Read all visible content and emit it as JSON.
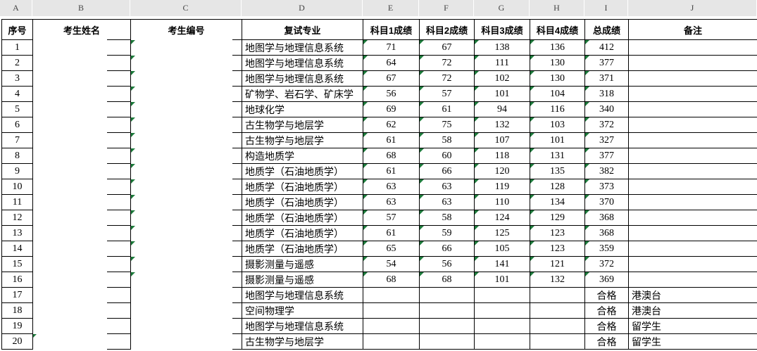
{
  "colors": {
    "grid_line": "#000000",
    "strip_background": "#e6e6e6",
    "strip_text": "#444444",
    "error_indicator_green": "#1e7b3c",
    "cell_background": "#ffffff",
    "cell_text": "#000000"
  },
  "column_strip": {
    "letters": [
      "A",
      "B",
      "C",
      "D",
      "E",
      "F",
      "G",
      "H",
      "I",
      "J"
    ]
  },
  "header": {
    "labels": [
      "序号",
      "考生姓名",
      "考生编号",
      "复试专业",
      "科目1成绩",
      "科目2成绩",
      "科目3成绩",
      "科目4成绩",
      "总成绩",
      "备注"
    ]
  },
  "rows": [
    {
      "no": "1",
      "name": "",
      "candidate_no": "",
      "major": "地图学与地理信息系统",
      "s1": "71",
      "s2": "67",
      "s3": "138",
      "s4": "136",
      "total": "412",
      "remark": "",
      "flagged": true
    },
    {
      "no": "2",
      "name": "",
      "candidate_no": "",
      "major": "地图学与地理信息系统",
      "s1": "64",
      "s2": "72",
      "s3": "111",
      "s4": "130",
      "total": "377",
      "remark": "",
      "flagged": true
    },
    {
      "no": "3",
      "name": "",
      "candidate_no": "",
      "major": "地图学与地理信息系统",
      "s1": "67",
      "s2": "72",
      "s3": "102",
      "s4": "130",
      "total": "371",
      "remark": "",
      "flagged": true
    },
    {
      "no": "4",
      "name": "",
      "candidate_no": "",
      "major": "矿物学、岩石学、矿床学",
      "s1": "56",
      "s2": "57",
      "s3": "101",
      "s4": "104",
      "total": "318",
      "remark": "",
      "flagged": true
    },
    {
      "no": "5",
      "name": "",
      "candidate_no": "",
      "major": "地球化学",
      "s1": "69",
      "s2": "61",
      "s3": "94",
      "s4": "116",
      "total": "340",
      "remark": "",
      "flagged": true
    },
    {
      "no": "6",
      "name": "",
      "candidate_no": "",
      "major": "古生物学与地层学",
      "s1": "62",
      "s2": "75",
      "s3": "132",
      "s4": "103",
      "total": "372",
      "remark": "",
      "flagged": true
    },
    {
      "no": "7",
      "name": "",
      "candidate_no": "",
      "major": "古生物学与地层学",
      "s1": "61",
      "s2": "58",
      "s3": "107",
      "s4": "101",
      "total": "327",
      "remark": "",
      "flagged": true
    },
    {
      "no": "8",
      "name": "",
      "candidate_no": "",
      "major": "构造地质学",
      "s1": "68",
      "s2": "60",
      "s3": "118",
      "s4": "131",
      "total": "377",
      "remark": "",
      "flagged": true
    },
    {
      "no": "9",
      "name": "",
      "candidate_no": "",
      "major": "地质学（石油地质学）",
      "s1": "61",
      "s2": "66",
      "s3": "120",
      "s4": "135",
      "total": "382",
      "remark": "",
      "flagged": true
    },
    {
      "no": "10",
      "name": "",
      "candidate_no": "",
      "major": "地质学（石油地质学）",
      "s1": "63",
      "s2": "63",
      "s3": "119",
      "s4": "128",
      "total": "373",
      "remark": "",
      "flagged": true
    },
    {
      "no": "11",
      "name": "",
      "candidate_no": "",
      "major": "地质学（石油地质学）",
      "s1": "63",
      "s2": "63",
      "s3": "110",
      "s4": "134",
      "total": "370",
      "remark": "",
      "flagged": true
    },
    {
      "no": "12",
      "name": "",
      "candidate_no": "",
      "major": "地质学（石油地质学）",
      "s1": "57",
      "s2": "58",
      "s3": "124",
      "s4": "129",
      "total": "368",
      "remark": "",
      "flagged": true
    },
    {
      "no": "13",
      "name": "",
      "candidate_no": "",
      "major": "地质学（石油地质学）",
      "s1": "61",
      "s2": "59",
      "s3": "125",
      "s4": "123",
      "total": "368",
      "remark": "",
      "flagged": true
    },
    {
      "no": "14",
      "name": "",
      "candidate_no": "",
      "major": "地质学（石油地质学）",
      "s1": "65",
      "s2": "66",
      "s3": "105",
      "s4": "123",
      "total": "359",
      "remark": "",
      "flagged": true
    },
    {
      "no": "15",
      "name": "",
      "candidate_no": "",
      "major": "摄影测量与遥感",
      "s1": "54",
      "s2": "56",
      "s3": "141",
      "s4": "121",
      "total": "372",
      "remark": "",
      "flagged": true
    },
    {
      "no": "16",
      "name": "",
      "candidate_no": "",
      "major": "摄影测量与遥感",
      "s1": "68",
      "s2": "68",
      "s3": "101",
      "s4": "132",
      "total": "369",
      "remark": "",
      "flagged": true
    },
    {
      "no": "17",
      "name": "",
      "candidate_no": "",
      "major": "地图学与地理信息系统",
      "s1": "",
      "s2": "",
      "s3": "",
      "s4": "",
      "total": "合格",
      "remark": "港澳台",
      "flagged": false
    },
    {
      "no": "18",
      "name": "",
      "candidate_no": "",
      "major": "空间物理学",
      "s1": "",
      "s2": "",
      "s3": "",
      "s4": "",
      "total": "合格",
      "remark": "港澳台",
      "flagged": false
    },
    {
      "no": "19",
      "name": "",
      "candidate_no": "",
      "major": "地图学与地理信息系统",
      "s1": "",
      "s2": "",
      "s3": "",
      "s4": "",
      "total": "合格",
      "remark": "留学生",
      "flagged": false
    },
    {
      "no": "20",
      "name": "",
      "candidate_no": "",
      "major": "古生物学与地层学",
      "s1": "",
      "s2": "",
      "s3": "",
      "s4": "",
      "total": "合格",
      "remark": "留学生",
      "flagged": false
    }
  ],
  "indicators": {
    "error_triangle_icon": "green top-left triangle (number stored as text)",
    "flagged_columns": [
      "candidate_no",
      "s1",
      "s2",
      "s3",
      "s4",
      "total"
    ],
    "extra_triangle_cell": "B20"
  }
}
